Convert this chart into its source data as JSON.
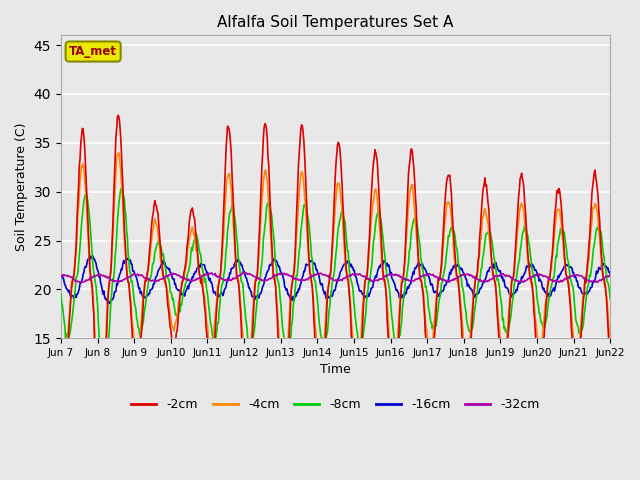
{
  "title": "Alfalfa Soil Temperatures Set A",
  "xlabel": "Time",
  "ylabel": "Soil Temperature (C)",
  "ylim": [
    15,
    46
  ],
  "yticks": [
    15,
    20,
    25,
    30,
    35,
    40,
    45
  ],
  "bg_color": "#e8e8e8",
  "fig_color": "#e8e8e8",
  "legend_label": "TA_met",
  "legend_box_facecolor": "#e8e800",
  "legend_box_edgecolor": "#888800",
  "legend_text_color": "#990000",
  "series_colors": {
    "-2cm": "#dd0000",
    "-4cm": "#ff8800",
    "-8cm": "#00cc00",
    "-16cm": "#0000cc",
    "-32cm": "#aa00aa"
  },
  "series_linewidth": 1.2,
  "n_days": 15,
  "start_day": 7,
  "end_day": 22
}
